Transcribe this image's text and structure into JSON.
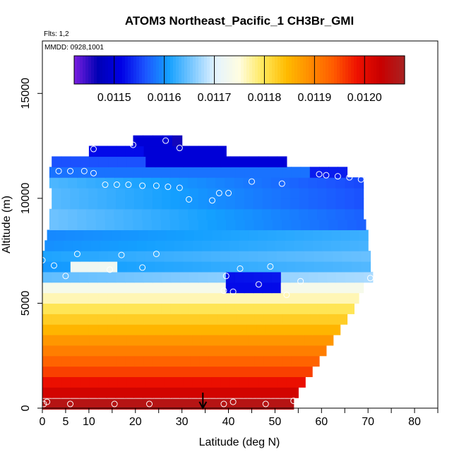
{
  "chart_data": {
    "type": "heatmap",
    "title": "ATOM3 Northeast_Pacific_1 CH3Br_GMI",
    "annotations": [
      "Flts: 1,2",
      "MMDD: 0928,1001"
    ],
    "xlabel": "Latitude (deg N)",
    "ylabel": "Altitude (m)",
    "xlim": [
      0,
      85
    ],
    "ylim": [
      0,
      17500
    ],
    "x_ticks": [
      0,
      5,
      10,
      20,
      30,
      40,
      50,
      60,
      70,
      80
    ],
    "x_minor_ticks": [
      15,
      25,
      35,
      45,
      55,
      65,
      75,
      85
    ],
    "y_ticks": [
      0,
      5000,
      10000,
      15000
    ],
    "colorbar": {
      "range": [
        0.01142,
        0.01208
      ],
      "ticks": [
        0.0115,
        0.0116,
        0.0117,
        0.0118,
        0.0119,
        0.012
      ],
      "tick_labels": [
        "0.0115",
        "0.0116",
        "0.0117",
        "0.0118",
        "0.0119",
        "0.0120"
      ],
      "colors": [
        "#7a1fe0",
        "#0000b4",
        "#0000e6",
        "#1c54ff",
        "#14a0ff",
        "#7cc8ff",
        "#e4f3ff",
        "#fffde0",
        "#ffe85a",
        "#ffbb00",
        "#ff8c00",
        "#ff5a00",
        "#ee1000",
        "#c80000",
        "#a82222"
      ]
    },
    "bands": [
      {
        "altitude": 200,
        "value": 0.01206,
        "lat_max": 54
      },
      {
        "altitude": 750,
        "value": 0.01202,
        "lat_max": 55
      },
      {
        "altitude": 1250,
        "value": 0.01199,
        "lat_max": 56.5
      },
      {
        "altitude": 1750,
        "value": 0.011955,
        "lat_max": 58
      },
      {
        "altitude": 2250,
        "value": 0.01193,
        "lat_max": 59.5
      },
      {
        "altitude": 2750,
        "value": 0.011905,
        "lat_max": 61
      },
      {
        "altitude": 3250,
        "value": 0.01188,
        "lat_max": 62.5
      },
      {
        "altitude": 3750,
        "value": 0.01185,
        "lat_max": 64
      },
      {
        "altitude": 4250,
        "value": 0.011825,
        "lat_max": 65.5
      },
      {
        "altitude": 4750,
        "value": 0.0118,
        "lat_max": 67
      },
      {
        "altitude": 5250,
        "value": 0.011765,
        "lat_max": 68
      },
      {
        "altitude": 5750,
        "value": 0.011735,
        "lat_max": 69
      },
      {
        "altitude": 6250,
        "value": 0.01166,
        "lat_max": 71
      },
      {
        "altitude": 6750,
        "value": 0.01162,
        "lat_max": 70.5
      },
      {
        "altitude": 7250,
        "value": 0.01163,
        "lat_max": 70.5
      },
      {
        "altitude": 7750,
        "value": 0.011615,
        "lat_max": 70
      },
      {
        "altitude": 8250,
        "value": 0.01161,
        "lat_max": 70
      },
      {
        "altitude": 8750,
        "value": 0.01161,
        "lat_max": 69.5
      },
      {
        "altitude": 9250,
        "value": 0.01161,
        "lat_max": 69
      },
      {
        "altitude": 9750,
        "value": 0.0116,
        "lat_max": 69
      },
      {
        "altitude": 10250,
        "value": 0.0116,
        "lat_max": 69
      },
      {
        "altitude": 10750,
        "value": 0.011595,
        "lat_max": 69
      },
      {
        "altitude": 11250,
        "value": 0.01158,
        "lat_max": 65.5
      },
      {
        "altitude": 11750,
        "value": 0.01156,
        "lat_max": 52.5
      },
      {
        "altitude": 12250,
        "value": 0.01152,
        "lat_max": 39.5
      },
      {
        "altitude": 12750,
        "value": 0.0115,
        "lat_max": 30
      }
    ],
    "band_lat_min": [
      0,
      0,
      0,
      0,
      0,
      0,
      0,
      0,
      0,
      0,
      0,
      0,
      0,
      0,
      0,
      0.5,
      1,
      1.5,
      1.5,
      2,
      2,
      1.5,
      1.5,
      2,
      10,
      19.5
    ],
    "lat_variation": [
      {
        "altitude_range": [
          6300,
          7000
        ],
        "lat": [
          7,
          17
        ],
        "value": 0.011735
      },
      {
        "altitude_range": [
          5500,
          6300
        ],
        "lat": [
          40,
          52
        ],
        "value": 0.01152
      },
      {
        "altitude_range": [
          11500,
          12500
        ],
        "lat": [
          22,
          52
        ],
        "value": 0.0115
      },
      {
        "altitude_range": [
          12300,
          13000
        ],
        "lat": [
          27,
          30
        ],
        "value": 0.01146
      },
      {
        "altitude_range": [
          10800,
          11400
        ],
        "lat": [
          57,
          66
        ],
        "value": 0.01153
      }
    ],
    "observations": [
      {
        "lat": 0.3,
        "alt": 200
      },
      {
        "lat": 1,
        "alt": 300
      },
      {
        "lat": 6,
        "alt": 200
      },
      {
        "lat": 15.5,
        "alt": 200
      },
      {
        "lat": 23,
        "alt": 200
      },
      {
        "lat": 39,
        "alt": 200
      },
      {
        "lat": 41,
        "alt": 300
      },
      {
        "lat": 48,
        "alt": 200
      },
      {
        "lat": 54,
        "alt": 350
      },
      {
        "lat": 0,
        "alt": 7050
      },
      {
        "lat": 2.5,
        "alt": 6800
      },
      {
        "lat": 5,
        "alt": 6300
      },
      {
        "lat": 7.5,
        "alt": 7350
      },
      {
        "lat": 14.5,
        "alt": 6600
      },
      {
        "lat": 17,
        "alt": 7300
      },
      {
        "lat": 21.5,
        "alt": 6700
      },
      {
        "lat": 24.5,
        "alt": 7350
      },
      {
        "lat": 39.5,
        "alt": 6300
      },
      {
        "lat": 39,
        "alt": 5600
      },
      {
        "lat": 41,
        "alt": 5550
      },
      {
        "lat": 42.5,
        "alt": 6650
      },
      {
        "lat": 46.5,
        "alt": 5900
      },
      {
        "lat": 49,
        "alt": 6750
      },
      {
        "lat": 52.5,
        "alt": 5400
      },
      {
        "lat": 55.5,
        "alt": 6050
      },
      {
        "lat": 70.5,
        "alt": 6200
      },
      {
        "lat": 3.5,
        "alt": 11300
      },
      {
        "lat": 6,
        "alt": 11300
      },
      {
        "lat": 9,
        "alt": 11300
      },
      {
        "lat": 11,
        "alt": 11200
      },
      {
        "lat": 13.5,
        "alt": 10650
      },
      {
        "lat": 16,
        "alt": 10650
      },
      {
        "lat": 18.5,
        "alt": 10650
      },
      {
        "lat": 21.5,
        "alt": 10600
      },
      {
        "lat": 24.5,
        "alt": 10600
      },
      {
        "lat": 27,
        "alt": 10550
      },
      {
        "lat": 29.5,
        "alt": 10500
      },
      {
        "lat": 31.5,
        "alt": 9950
      },
      {
        "lat": 36.5,
        "alt": 9900
      },
      {
        "lat": 38,
        "alt": 10250
      },
      {
        "lat": 40,
        "alt": 10250
      },
      {
        "lat": 45,
        "alt": 10800
      },
      {
        "lat": 51.5,
        "alt": 10700
      },
      {
        "lat": 59.5,
        "alt": 11150
      },
      {
        "lat": 61,
        "alt": 11100
      },
      {
        "lat": 63.5,
        "alt": 11050
      },
      {
        "lat": 66,
        "alt": 11000
      },
      {
        "lat": 68.5,
        "alt": 10900
      },
      {
        "lat": 11,
        "alt": 12350
      },
      {
        "lat": 19.5,
        "alt": 12550
      },
      {
        "lat": 26.5,
        "alt": 12750
      },
      {
        "lat": 29.5,
        "alt": 12400
      }
    ],
    "flight_marker": {
      "lat": 34.5,
      "arrow": "down"
    },
    "grid": false
  }
}
